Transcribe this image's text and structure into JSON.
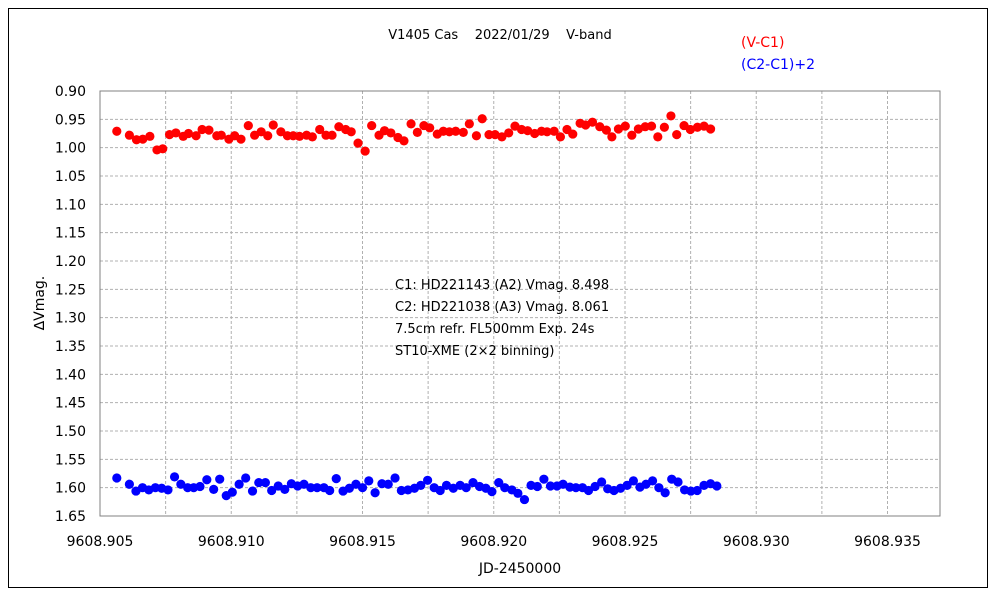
{
  "chart_data": {
    "type": "scatter",
    "title": "V1405 Cas    2022/01/29    V-band",
    "xlabel": "JD-2450000",
    "ylabel": "∆Vmag.",
    "xlim": [
      9608.905,
      9608.937
    ],
    "ylim": [
      0.9,
      1.65
    ],
    "y_inverted": true,
    "grid": true,
    "legend_position": "top-right",
    "x_ticks": [
      "9608.905",
      "9608.910",
      "9608.915",
      "9608.920",
      "9608.925",
      "9608.930",
      "9608.935"
    ],
    "y_ticks": [
      "0.90",
      "0.95",
      "1.00",
      "1.05",
      "1.10",
      "1.15",
      "1.20",
      "1.25",
      "1.30",
      "1.35",
      "1.40",
      "1.45",
      "1.50",
      "1.55",
      "1.60",
      "1.65"
    ],
    "annotations": [
      "C1: HD221143 (A2) Vmag. 8.498",
      "C2: HD221038 (A3) Vmag. 8.061",
      "7.5cm refr. FL500mm Exp. 24s",
      "ST10-XME (2×2 binning)"
    ],
    "series": [
      {
        "name": "(V-C1)",
        "color": "#ff0000",
        "points": [
          [
            9608.90564,
            0.971
          ],
          [
            9608.90612,
            0.978
          ],
          [
            9608.90639,
            0.986
          ],
          [
            9608.90663,
            0.985
          ],
          [
            9608.9069,
            0.98
          ],
          [
            9608.90717,
            1.004
          ],
          [
            9608.90739,
            1.002
          ],
          [
            9608.90765,
            0.977
          ],
          [
            9608.90789,
            0.974
          ],
          [
            9608.90817,
            0.98
          ],
          [
            9608.90837,
            0.975
          ],
          [
            9608.90866,
            0.979
          ],
          [
            9608.90889,
            0.968
          ],
          [
            9608.90915,
            0.969
          ],
          [
            9608.90945,
            0.979
          ],
          [
            9608.90962,
            0.978
          ],
          [
            9608.90991,
            0.985
          ],
          [
            9608.91013,
            0.979
          ],
          [
            9608.91037,
            0.985
          ],
          [
            9608.91065,
            0.961
          ],
          [
            9608.91089,
            0.978
          ],
          [
            9608.91114,
            0.972
          ],
          [
            9608.91139,
            0.979
          ],
          [
            9608.9116,
            0.96
          ],
          [
            9608.91189,
            0.972
          ],
          [
            9608.91214,
            0.979
          ],
          [
            9608.91236,
            0.979
          ],
          [
            9608.9126,
            0.98
          ],
          [
            9608.91287,
            0.978
          ],
          [
            9608.91309,
            0.981
          ],
          [
            9608.91337,
            0.968
          ],
          [
            9608.91361,
            0.978
          ],
          [
            9608.91384,
            0.978
          ],
          [
            9608.9141,
            0.963
          ],
          [
            9608.91436,
            0.968
          ],
          [
            9608.91457,
            0.972
          ],
          [
            9608.91483,
            0.992
          ],
          [
            9608.9151,
            1.006
          ],
          [
            9608.91535,
            0.961
          ],
          [
            9608.91563,
            0.978
          ],
          [
            9608.91584,
            0.97
          ],
          [
            9608.91608,
            0.974
          ],
          [
            9608.91635,
            0.982
          ],
          [
            9608.91658,
            0.988
          ],
          [
            9608.91685,
            0.958
          ],
          [
            9608.91709,
            0.973
          ],
          [
            9608.91734,
            0.961
          ],
          [
            9608.91756,
            0.965
          ],
          [
            9608.91785,
            0.976
          ],
          [
            9608.91808,
            0.971
          ],
          [
            9608.91831,
            0.972
          ],
          [
            9608.91855,
            0.971
          ],
          [
            9608.91884,
            0.973
          ],
          [
            9608.91907,
            0.958
          ],
          [
            9608.91934,
            0.979
          ],
          [
            9608.91956,
            0.949
          ],
          [
            9608.91982,
            0.977
          ],
          [
            9608.92005,
            0.977
          ],
          [
            9608.92031,
            0.981
          ],
          [
            9608.92057,
            0.974
          ],
          [
            9608.92081,
            0.962
          ],
          [
            9608.92106,
            0.968
          ],
          [
            9608.92129,
            0.97
          ],
          [
            9608.92156,
            0.975
          ],
          [
            9608.92182,
            0.971
          ],
          [
            9608.92203,
            0.972
          ],
          [
            9608.9223,
            0.971
          ],
          [
            9608.92254,
            0.981
          ],
          [
            9608.92279,
            0.968
          ],
          [
            9608.92301,
            0.976
          ],
          [
            9608.92329,
            0.957
          ],
          [
            9608.9235,
            0.96
          ],
          [
            9608.92376,
            0.955
          ],
          [
            9608.92404,
            0.963
          ],
          [
            9608.92429,
            0.969
          ],
          [
            9608.9245,
            0.981
          ],
          [
            9608.92475,
            0.967
          ],
          [
            9608.92501,
            0.962
          ],
          [
            9608.92526,
            0.978
          ],
          [
            9608.92551,
            0.967
          ],
          [
            9608.92577,
            0.963
          ],
          [
            9608.92601,
            0.962
          ],
          [
            9608.92625,
            0.981
          ],
          [
            9608.9265,
            0.964
          ],
          [
            9608.92675,
            0.944
          ],
          [
            9608.92697,
            0.977
          ],
          [
            9608.92725,
            0.961
          ],
          [
            9608.92749,
            0.968
          ],
          [
            9608.92776,
            0.964
          ],
          [
            9608.92801,
            0.962
          ],
          [
            9608.92826,
            0.967
          ]
        ]
      },
      {
        "name": "(C2-C1)+2",
        "color": "#0000ff",
        "points": [
          [
            9608.90564,
            1.583
          ],
          [
            9608.90612,
            1.594
          ],
          [
            9608.90637,
            1.606
          ],
          [
            9608.90662,
            1.6
          ],
          [
            9608.90686,
            1.604
          ],
          [
            9608.90711,
            1.6
          ],
          [
            9608.90735,
            1.601
          ],
          [
            9608.90759,
            1.604
          ],
          [
            9608.90784,
            1.581
          ],
          [
            9608.90808,
            1.594
          ],
          [
            9608.90834,
            1.6
          ],
          [
            9608.90857,
            1.6
          ],
          [
            9608.90881,
            1.598
          ],
          [
            9608.90907,
            1.586
          ],
          [
            9608.90933,
            1.603
          ],
          [
            9608.90956,
            1.585
          ],
          [
            9608.90981,
            1.614
          ],
          [
            9608.91004,
            1.608
          ],
          [
            9608.9103,
            1.594
          ],
          [
            9608.91055,
            1.583
          ],
          [
            9608.91081,
            1.606
          ],
          [
            9608.91105,
            1.591
          ],
          [
            9608.9113,
            1.591
          ],
          [
            9608.91154,
            1.605
          ],
          [
            9608.91179,
            1.597
          ],
          [
            9608.91204,
            1.603
          ],
          [
            9608.91229,
            1.593
          ],
          [
            9608.91253,
            1.597
          ],
          [
            9608.91277,
            1.594
          ],
          [
            9608.91303,
            1.6
          ],
          [
            9608.91327,
            1.6
          ],
          [
            9608.91353,
            1.6
          ],
          [
            9608.91375,
            1.605
          ],
          [
            9608.914,
            1.584
          ],
          [
            9608.91426,
            1.606
          ],
          [
            9608.9145,
            1.601
          ],
          [
            9608.91475,
            1.594
          ],
          [
            9608.915,
            1.6
          ],
          [
            9608.91524,
            1.588
          ],
          [
            9608.91548,
            1.609
          ],
          [
            9608.91574,
            1.593
          ],
          [
            9608.91598,
            1.594
          ],
          [
            9608.91624,
            1.583
          ],
          [
            9608.91648,
            1.605
          ],
          [
            9608.91673,
            1.604
          ],
          [
            9608.91698,
            1.601
          ],
          [
            9608.91722,
            1.596
          ],
          [
            9608.91748,
            1.587
          ],
          [
            9608.91773,
            1.6
          ],
          [
            9608.91796,
            1.605
          ],
          [
            9608.9182,
            1.596
          ],
          [
            9608.91846,
            1.601
          ],
          [
            9608.91872,
            1.596
          ],
          [
            9608.91895,
            1.6
          ],
          [
            9608.91921,
            1.591
          ],
          [
            9608.91946,
            1.598
          ],
          [
            9608.9197,
            1.601
          ],
          [
            9608.91993,
            1.607
          ],
          [
            9608.92019,
            1.591
          ],
          [
            9608.92042,
            1.6
          ],
          [
            9608.92069,
            1.604
          ],
          [
            9608.92092,
            1.61
          ],
          [
            9608.92117,
            1.621
          ],
          [
            9608.92142,
            1.596
          ],
          [
            9608.92166,
            1.598
          ],
          [
            9608.92191,
            1.585
          ],
          [
            9608.92216,
            1.597
          ],
          [
            9608.92241,
            1.597
          ],
          [
            9608.92264,
            1.594
          ],
          [
            9608.9229,
            1.599
          ],
          [
            9608.92313,
            1.6
          ],
          [
            9608.92338,
            1.6
          ],
          [
            9608.92361,
            1.605
          ],
          [
            9608.92386,
            1.598
          ],
          [
            9608.92411,
            1.59
          ],
          [
            9608.92434,
            1.602
          ],
          [
            9608.92458,
            1.605
          ],
          [
            9608.92483,
            1.601
          ],
          [
            9608.92508,
            1.596
          ],
          [
            9608.92532,
            1.588
          ],
          [
            9608.92557,
            1.599
          ],
          [
            9608.9258,
            1.594
          ],
          [
            9608.92605,
            1.588
          ],
          [
            9608.92629,
            1.6
          ],
          [
            9608.92653,
            1.609
          ],
          [
            9608.92678,
            1.585
          ],
          [
            9608.92702,
            1.59
          ],
          [
            9608.92727,
            1.604
          ],
          [
            9608.92751,
            1.606
          ],
          [
            9608.92775,
            1.605
          ],
          [
            9608.92801,
            1.596
          ],
          [
            9608.92826,
            1.593
          ],
          [
            9608.9285,
            1.597
          ]
        ]
      }
    ]
  }
}
